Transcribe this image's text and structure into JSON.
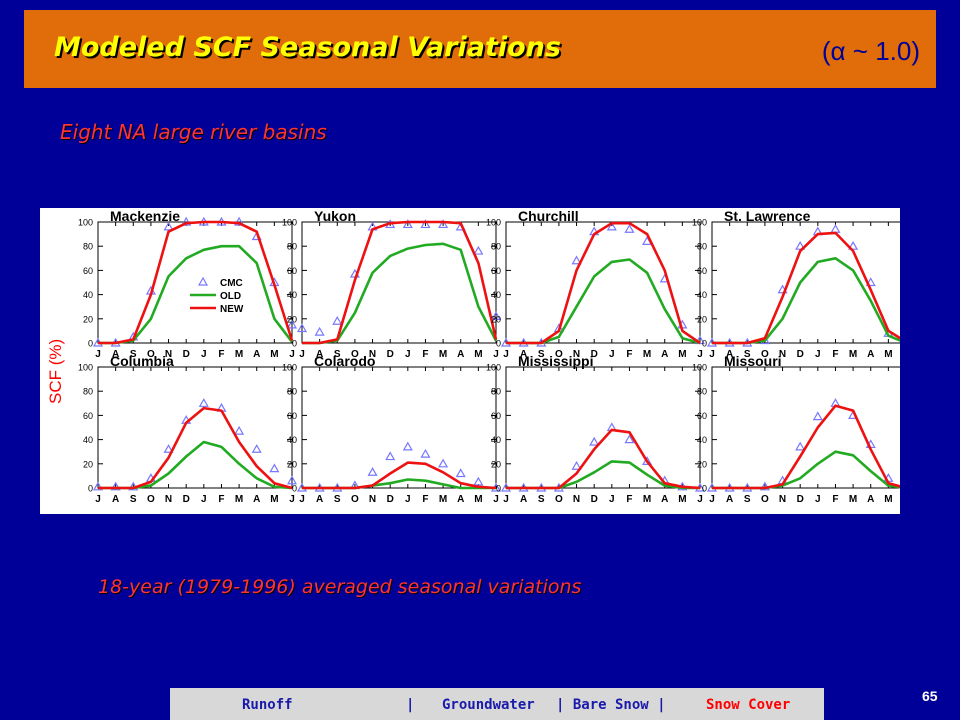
{
  "slide": {
    "title": "Modeled SCF Seasonal Variations",
    "title_param": "(α ~ 1.0)",
    "subtitle": "Eight NA large river basins",
    "caption": "18-year (1979-1996) averaged seasonal variations",
    "page_number": "65"
  },
  "nav": {
    "items": [
      {
        "label": "Runoff",
        "active": false
      },
      {
        "label": "|",
        "active": false
      },
      {
        "label": "Groundwater",
        "active": false
      },
      {
        "label": "| Bare Snow |",
        "active": false
      },
      {
        "label": "Snow Cover",
        "active": true
      }
    ]
  },
  "colors": {
    "background": "#000099",
    "title_bar": "#e06c0a",
    "title_text": "#ffff00",
    "accent_red": "#ff3333",
    "series_old": "#22aa22",
    "series_new": "#ee1111",
    "series_cmc": "#7777ff"
  },
  "chart_data": {
    "type": "line",
    "ylabel": "SCF (%)",
    "ylim": [
      0,
      100
    ],
    "yticks": [
      0,
      20,
      40,
      60,
      80,
      100
    ],
    "x": [
      "J",
      "A",
      "S",
      "O",
      "N",
      "D",
      "J",
      "F",
      "M",
      "A",
      "M",
      "J"
    ],
    "legend": [
      {
        "name": "CMC",
        "marker": "triangle"
      },
      {
        "name": "OLD",
        "marker": "line"
      },
      {
        "name": "NEW",
        "marker": "line"
      }
    ],
    "panels": [
      {
        "title": "Mackenzie",
        "series": [
          {
            "name": "CMC",
            "values": [
              0,
              0,
              5,
              43,
              96,
              100,
              100,
              100,
              100,
              88,
              50,
              15
            ]
          },
          {
            "name": "OLD",
            "values": [
              0,
              0,
              2,
              20,
              55,
              70,
              77,
              80,
              80,
              66,
              20,
              1
            ]
          },
          {
            "name": "NEW",
            "values": [
              0,
              0,
              3,
              40,
              92,
              99,
              100,
              100,
              99,
              92,
              48,
              2
            ]
          }
        ]
      },
      {
        "title": "Yukon",
        "series": [
          {
            "name": "CMC",
            "values": [
              12,
              9,
              18,
              57,
              96,
              98,
              98,
              98,
              98,
              96,
              76,
              22
            ]
          },
          {
            "name": "OLD",
            "values": [
              0,
              0,
              2,
              25,
              58,
              72,
              78,
              81,
              82,
              77,
              30,
              2
            ]
          },
          {
            "name": "NEW",
            "values": [
              0,
              0,
              3,
              52,
              94,
              99,
              100,
              100,
              100,
              99,
              66,
              3
            ]
          }
        ]
      },
      {
        "title": "Churchill",
        "series": [
          {
            "name": "CMC",
            "values": [
              0,
              0,
              0,
              12,
              68,
              92,
              96,
              94,
              84,
              53,
              15,
              2
            ]
          },
          {
            "name": "OLD",
            "values": [
              0,
              0,
              0,
              5,
              30,
              55,
              67,
              69,
              58,
              28,
              4,
              0
            ]
          },
          {
            "name": "NEW",
            "values": [
              0,
              0,
              0,
              10,
              60,
              90,
              99,
              99,
              90,
              60,
              10,
              0
            ]
          }
        ]
      },
      {
        "title": "St. Lawrence",
        "series": [
          {
            "name": "CMC",
            "values": [
              0,
              0,
              0,
              2,
              44,
              80,
              92,
              94,
              80,
              50,
              8,
              0
            ]
          },
          {
            "name": "OLD",
            "values": [
              0,
              0,
              0,
              2,
              20,
              50,
              67,
              70,
              60,
              35,
              6,
              0
            ]
          },
          {
            "name": "NEW",
            "values": [
              0,
              0,
              0,
              4,
              38,
              76,
              90,
              91,
              76,
              44,
              10,
              1
            ]
          }
        ]
      },
      {
        "title": "Columbia",
        "series": [
          {
            "name": "CMC",
            "values": [
              1,
              1,
              1,
              8,
              32,
              56,
              70,
              66,
              47,
              32,
              16,
              6
            ]
          },
          {
            "name": "OLD",
            "values": [
              0,
              0,
              0,
              2,
              12,
              26,
              38,
              34,
              20,
              8,
              1,
              0
            ]
          },
          {
            "name": "NEW",
            "values": [
              0,
              0,
              0,
              5,
              25,
              54,
              66,
              64,
              38,
              18,
              4,
              0
            ]
          }
        ]
      },
      {
        "title": "Colarodo",
        "series": [
          {
            "name": "CMC",
            "values": [
              0,
              0,
              0,
              2,
              13,
              26,
              34,
              28,
              20,
              12,
              5,
              0
            ]
          },
          {
            "name": "OLD",
            "values": [
              0,
              0,
              0,
              0,
              2,
              4,
              7,
              6,
              3,
              0,
              0,
              0
            ]
          },
          {
            "name": "NEW",
            "values": [
              0,
              0,
              0,
              0,
              2,
              12,
              21,
              20,
              13,
              4,
              1,
              0
            ]
          }
        ]
      },
      {
        "title": "Mississippi",
        "series": [
          {
            "name": "CMC",
            "values": [
              0,
              0,
              0,
              0,
              18,
              38,
              50,
              40,
              22,
              6,
              1,
              0
            ]
          },
          {
            "name": "OLD",
            "values": [
              0,
              0,
              0,
              0,
              5,
              13,
              22,
              21,
              11,
              2,
              0,
              0
            ]
          },
          {
            "name": "NEW",
            "values": [
              0,
              0,
              0,
              0,
              12,
              32,
              48,
              46,
              22,
              4,
              1,
              0
            ]
          }
        ]
      },
      {
        "title": "Missouri",
        "series": [
          {
            "name": "CMC",
            "values": [
              0,
              0,
              0,
              1,
              6,
              34,
              59,
              70,
              60,
              36,
              8,
              2
            ]
          },
          {
            "name": "OLD",
            "values": [
              0,
              0,
              0,
              0,
              2,
              8,
              20,
              30,
              27,
              14,
              2,
              0
            ]
          },
          {
            "name": "NEW",
            "values": [
              0,
              0,
              0,
              0,
              3,
              26,
              50,
              68,
              64,
              32,
              4,
              0
            ]
          }
        ]
      }
    ]
  }
}
